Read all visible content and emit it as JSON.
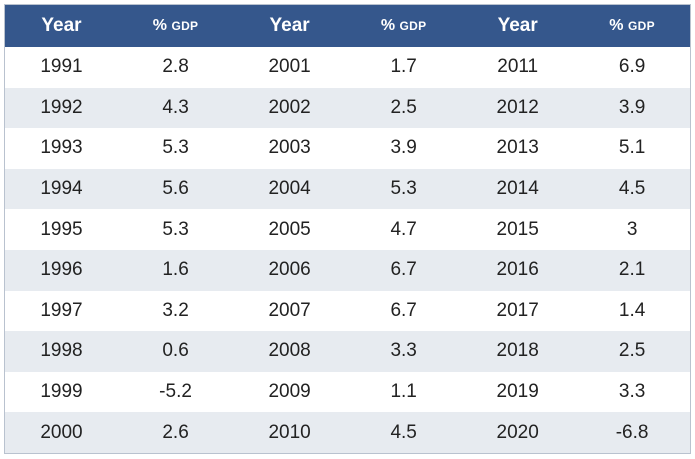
{
  "colors": {
    "header_bg": "#35578c",
    "header_text": "#ffffff",
    "row_alt_bg": "#e7ebf0",
    "row_bg": "#ffffff",
    "border": "#b9c2cf"
  },
  "chart_data": {
    "type": "table",
    "columns": [
      {
        "year_label": "Year",
        "value_label_pct": "%",
        "value_label_unit": "GDP"
      },
      {
        "year_label": "Year",
        "value_label_pct": "%",
        "value_label_unit": "GDP"
      },
      {
        "year_label": "Year",
        "value_label_pct": "%",
        "value_label_unit": "GDP"
      }
    ],
    "rows": [
      {
        "y1": "1991",
        "v1": "2.8",
        "y2": "2001",
        "v2": "1.7",
        "y3": "2011",
        "v3": "6.9"
      },
      {
        "y1": "1992",
        "v1": "4.3",
        "y2": "2002",
        "v2": "2.5",
        "y3": "2012",
        "v3": "3.9"
      },
      {
        "y1": "1993",
        "v1": "5.3",
        "y2": "2003",
        "v2": "3.9",
        "y3": "2013",
        "v3": "5.1"
      },
      {
        "y1": "1994",
        "v1": "5.6",
        "y2": "2004",
        "v2": "5.3",
        "y3": "2014",
        "v3": "4.5"
      },
      {
        "y1": "1995",
        "v1": "5.3",
        "y2": "2005",
        "v2": "4.7",
        "y3": "2015",
        "v3": "3"
      },
      {
        "y1": "1996",
        "v1": "1.6",
        "y2": "2006",
        "v2": "6.7",
        "y3": "2016",
        "v3": "2.1"
      },
      {
        "y1": "1997",
        "v1": "3.2",
        "y2": "2007",
        "v2": "6.7",
        "y3": "2017",
        "v3": "1.4"
      },
      {
        "y1": "1998",
        "v1": "0.6",
        "y2": "2008",
        "v2": "3.3",
        "y3": "2018",
        "v3": "2.5"
      },
      {
        "y1": "1999",
        "v1": "-5.2",
        "y2": "2009",
        "v2": "1.1",
        "y3": "2019",
        "v3": "3.3"
      },
      {
        "y1": "2000",
        "v1": "2.6",
        "y2": "2010",
        "v2": "4.5",
        "y3": "2020",
        "v3": "-6.8"
      }
    ]
  }
}
